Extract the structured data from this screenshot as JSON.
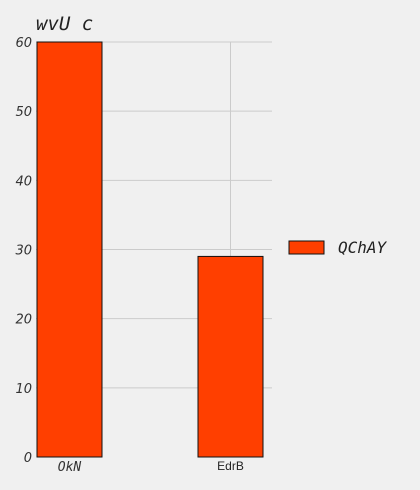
{
  "chart_data": {
    "type": "bar",
    "title": "wvU c",
    "categories": [
      "OkN",
      "EdrB"
    ],
    "series": [
      {
        "name": "QChAY",
        "values": [
          60,
          29
        ],
        "color": "#ff3f00"
      }
    ],
    "ylim": [
      0,
      60
    ],
    "yticks": [
      0,
      10,
      20,
      30,
      40,
      50,
      60
    ],
    "grid": true,
    "legend_position": "right",
    "background": "#f0f0f0",
    "xlabel": "",
    "ylabel": ""
  }
}
